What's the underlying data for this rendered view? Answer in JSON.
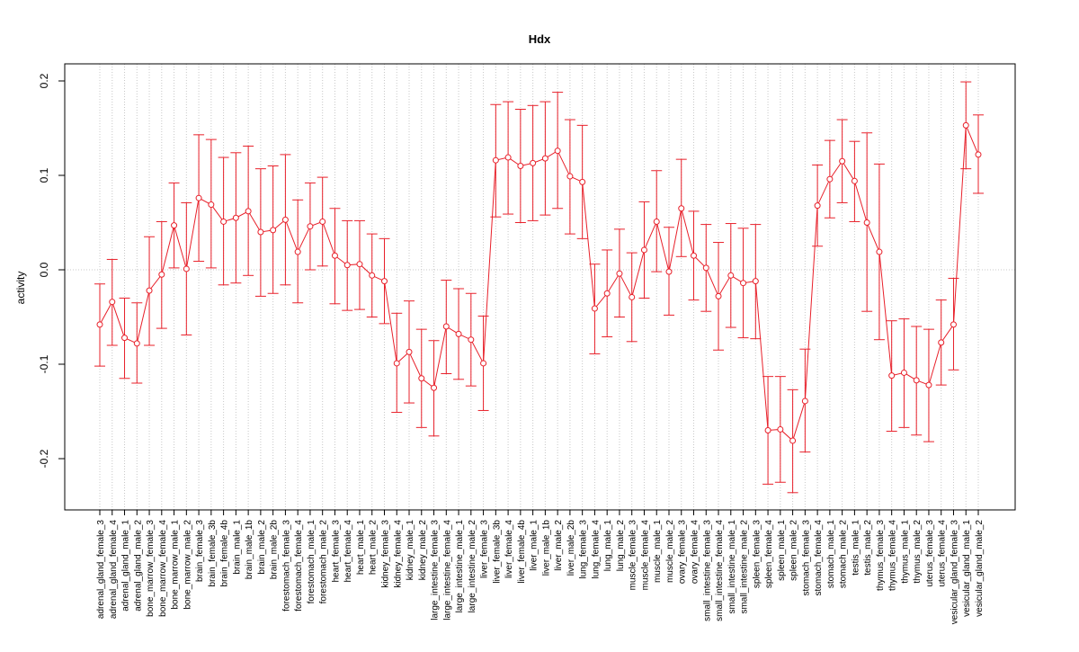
{
  "chart_data": {
    "type": "line",
    "title": "Hdx",
    "xlabel": "",
    "ylabel": "activity",
    "ylim": [
      -0.25,
      0.22
    ],
    "y_ticks": [
      -0.2,
      -0.1,
      0.0,
      0.1,
      0.2
    ],
    "y_tick_labels": [
      "-0.2",
      "-0.1",
      "0.0",
      "0.1",
      "0.2"
    ],
    "grid": true,
    "reference_line": 0,
    "series_color": "#e8202a",
    "grid_color": "#c8c8c8",
    "categories": [
      "adrenal_gland_female_3",
      "adrenal_gland_female_4",
      "adrenal_gland_male_1",
      "adrenal_gland_male_2",
      "bone_marrow_female_3",
      "bone_marrow_female_4",
      "bone_marrow_male_1",
      "bone_marrow_male_2",
      "brain_female_3",
      "brain_female_3b",
      "brain_female_4b",
      "brain_male_1",
      "brain_male_1b",
      "brain_male_2",
      "brain_male_2b",
      "forestomach_female_3",
      "forestomach_female_4",
      "forestomach_male_1",
      "forestomach_male_2",
      "heart_female_3",
      "heart_female_4",
      "heart_male_1",
      "heart_male_2",
      "kidney_female_3",
      "kidney_female_4",
      "kidney_male_1",
      "kidney_male_2",
      "large_intestine_female_3",
      "large_intestine_female_4",
      "large_intestine_male_1",
      "large_intestine_male_2",
      "liver_female_3",
      "liver_female_3b",
      "liver_female_4",
      "liver_female_4b",
      "liver_male_1",
      "liver_male_1b",
      "liver_male_2",
      "liver_male_2b",
      "lung_female_3",
      "lung_female_4",
      "lung_male_1",
      "lung_male_2",
      "muscle_female_3",
      "muscle_female_4",
      "muscle_male_1",
      "muscle_male_2",
      "ovary_female_3",
      "ovary_female_4",
      "small_intestine_female_3",
      "small_intestine_female_4",
      "small_intestine_male_1",
      "small_intestine_male_2",
      "spleen_female_3",
      "spleen_female_4",
      "spleen_male_1",
      "spleen_male_2",
      "stomach_female_3",
      "stomach_female_4",
      "stomach_male_1",
      "stomach_male_2",
      "testis_male_1",
      "testis_male_2",
      "thymus_female_3",
      "thymus_female_4",
      "thymus_male_1",
      "thymus_male_2",
      "uterus_female_3",
      "uterus_female_4",
      "vesicular_gland_female_3",
      "vesicular_gland_male_1",
      "vesicular_gland_male_2"
    ],
    "values": [
      -0.058,
      -0.034,
      -0.072,
      -0.078,
      -0.022,
      -0.005,
      0.047,
      0.001,
      0.076,
      0.069,
      0.051,
      0.055,
      0.062,
      0.04,
      0.042,
      0.053,
      0.019,
      0.046,
      0.051,
      0.015,
      0.005,
      0.006,
      -0.006,
      -0.012,
      -0.099,
      -0.087,
      -0.115,
      -0.125,
      -0.06,
      -0.068,
      -0.074,
      -0.099,
      0.116,
      0.119,
      0.11,
      0.113,
      0.118,
      0.126,
      0.099,
      0.093,
      -0.041,
      -0.025,
      -0.004,
      -0.029,
      0.021,
      0.051,
      -0.002,
      0.065,
      0.015,
      0.002,
      -0.028,
      -0.006,
      -0.014,
      -0.012,
      -0.17,
      -0.169,
      -0.181,
      -0.139,
      0.068,
      0.096,
      0.115,
      0.094,
      0.05,
      0.019,
      -0.112,
      -0.109,
      -0.117,
      -0.122,
      -0.077,
      -0.058,
      0.153,
      0.122
    ],
    "upper": [
      -0.015,
      0.011,
      -0.03,
      -0.035,
      0.035,
      0.051,
      0.092,
      0.071,
      0.143,
      0.138,
      0.119,
      0.124,
      0.131,
      0.107,
      0.11,
      0.122,
      0.074,
      0.092,
      0.098,
      0.065,
      0.052,
      0.052,
      0.038,
      0.033,
      -0.046,
      -0.033,
      -0.063,
      -0.075,
      -0.011,
      -0.02,
      -0.025,
      -0.049,
      0.175,
      0.178,
      0.17,
      0.174,
      0.178,
      0.188,
      0.159,
      0.153,
      0.006,
      0.021,
      0.043,
      0.018,
      0.072,
      0.105,
      0.045,
      0.117,
      0.062,
      0.048,
      0.029,
      0.049,
      0.044,
      0.048,
      -0.113,
      -0.113,
      -0.127,
      -0.084,
      0.111,
      0.137,
      0.159,
      0.136,
      0.145,
      0.112,
      -0.054,
      -0.052,
      -0.06,
      -0.063,
      -0.032,
      -0.009,
      0.199,
      0.164
    ],
    "lower": [
      -0.102,
      -0.08,
      -0.115,
      -0.12,
      -0.08,
      -0.062,
      0.002,
      -0.069,
      0.009,
      0.002,
      -0.016,
      -0.014,
      -0.006,
      -0.028,
      -0.025,
      -0.016,
      -0.035,
      0.0,
      0.004,
      -0.036,
      -0.043,
      -0.042,
      -0.05,
      -0.057,
      -0.151,
      -0.141,
      -0.167,
      -0.176,
      -0.11,
      -0.116,
      -0.123,
      -0.149,
      0.056,
      0.059,
      0.05,
      0.052,
      0.058,
      0.065,
      0.038,
      0.033,
      -0.089,
      -0.071,
      -0.05,
      -0.076,
      -0.03,
      -0.002,
      -0.048,
      0.014,
      -0.032,
      -0.044,
      -0.085,
      -0.061,
      -0.072,
      -0.073,
      -0.227,
      -0.225,
      -0.236,
      -0.193,
      0.025,
      0.055,
      0.071,
      0.051,
      -0.044,
      -0.074,
      -0.171,
      -0.167,
      -0.175,
      -0.182,
      -0.122,
      -0.106,
      0.107,
      0.081
    ]
  }
}
